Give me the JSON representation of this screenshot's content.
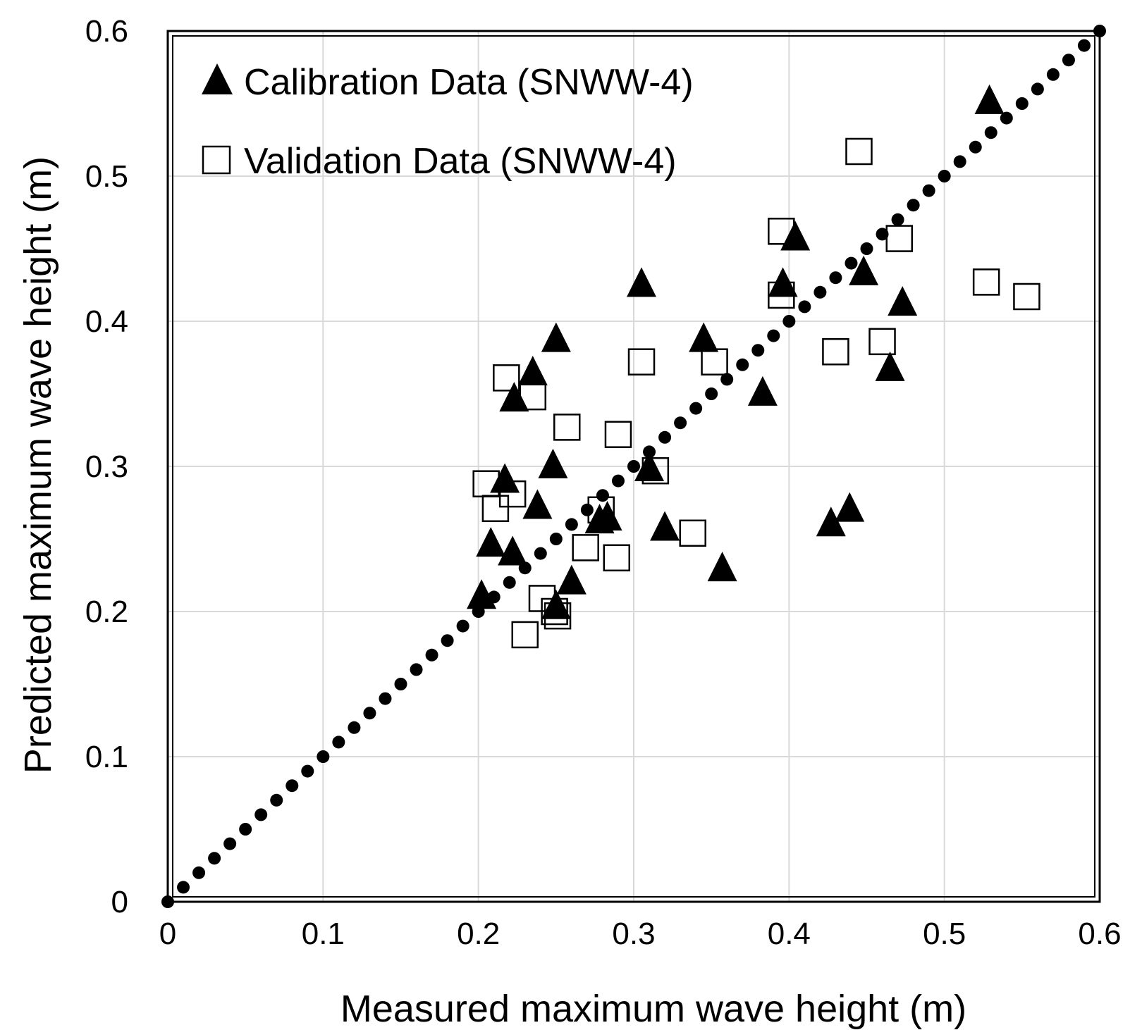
{
  "chart_data": {
    "type": "scatter",
    "xlabel": "Measured maximum wave height (m)",
    "ylabel": "Predicted maximum wave height (m)",
    "xlim": [
      0,
      0.6
    ],
    "ylim": [
      0,
      0.6
    ],
    "grid": true,
    "legend_position": "top-left",
    "x_ticks": [
      "0",
      "0.1",
      "0.2",
      "0.3",
      "0.4",
      "0.5",
      "0.6"
    ],
    "y_ticks": [
      "0",
      "0.1",
      "0.2",
      "0.3",
      "0.4",
      "0.5",
      "0.6"
    ],
    "tick_values": [
      0,
      0.1,
      0.2,
      0.3,
      0.4,
      0.5,
      0.6
    ],
    "reference_line": {
      "name": "1:1 line",
      "style": "dotted",
      "from": [
        0,
        0
      ],
      "to": [
        0.6,
        0.6
      ]
    },
    "series": [
      {
        "name": "Calibration Data (SNWW-4)",
        "marker": "filled-triangle",
        "points": [
          [
            0.529,
            0.553
          ],
          [
            0.404,
            0.459
          ],
          [
            0.396,
            0.427
          ],
          [
            0.448,
            0.435
          ],
          [
            0.473,
            0.414
          ],
          [
            0.465,
            0.369
          ],
          [
            0.305,
            0.427
          ],
          [
            0.25,
            0.389
          ],
          [
            0.345,
            0.389
          ],
          [
            0.383,
            0.352
          ],
          [
            0.235,
            0.366
          ],
          [
            0.223,
            0.348
          ],
          [
            0.248,
            0.302
          ],
          [
            0.31,
            0.3
          ],
          [
            0.217,
            0.292
          ],
          [
            0.238,
            0.274
          ],
          [
            0.278,
            0.264
          ],
          [
            0.283,
            0.266
          ],
          [
            0.32,
            0.259
          ],
          [
            0.427,
            0.262
          ],
          [
            0.439,
            0.272
          ],
          [
            0.208,
            0.248
          ],
          [
            0.222,
            0.242
          ],
          [
            0.357,
            0.231
          ],
          [
            0.26,
            0.222
          ],
          [
            0.202,
            0.212
          ],
          [
            0.25,
            0.205
          ]
        ]
      },
      {
        "name": "Validation Data (SNWW-4)",
        "marker": "open-square",
        "points": [
          [
            0.445,
            0.517
          ],
          [
            0.395,
            0.462
          ],
          [
            0.395,
            0.418
          ],
          [
            0.471,
            0.457
          ],
          [
            0.527,
            0.427
          ],
          [
            0.553,
            0.417
          ],
          [
            0.46,
            0.386
          ],
          [
            0.43,
            0.379
          ],
          [
            0.305,
            0.372
          ],
          [
            0.352,
            0.372
          ],
          [
            0.218,
            0.361
          ],
          [
            0.235,
            0.348
          ],
          [
            0.257,
            0.327
          ],
          [
            0.29,
            0.322
          ],
          [
            0.314,
            0.297
          ],
          [
            0.205,
            0.288
          ],
          [
            0.222,
            0.281
          ],
          [
            0.211,
            0.271
          ],
          [
            0.279,
            0.27
          ],
          [
            0.338,
            0.254
          ],
          [
            0.269,
            0.244
          ],
          [
            0.289,
            0.237
          ],
          [
            0.241,
            0.209
          ],
          [
            0.249,
            0.2
          ],
          [
            0.251,
            0.197
          ],
          [
            0.23,
            0.184
          ]
        ]
      }
    ]
  }
}
